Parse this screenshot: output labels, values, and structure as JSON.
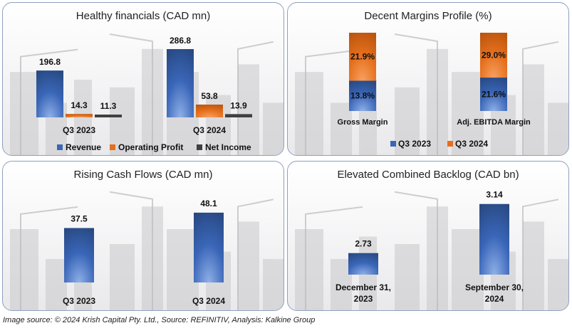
{
  "colors": {
    "blue": "#3a66b8",
    "blue_dark": "#27477f",
    "orange": "#e56f1c",
    "orange_dark": "#b8540e",
    "dark": "#404040"
  },
  "caption": "Image source: © 2024 Krish Capital Pty. Ltd., Source: REFINITIV, Analysis: Kalkine Group",
  "chart_data": [
    {
      "type": "bar",
      "title": "Healthy financials (CAD mn)",
      "categories": [
        "Q3 2023",
        "Q3 2024"
      ],
      "series": [
        {
          "name": "Revenue",
          "values": [
            196.8,
            286.8
          ]
        },
        {
          "name": "Operating Profit",
          "values": [
            14.3,
            53.8
          ]
        },
        {
          "name": "Net Income",
          "values": [
            11.3,
            13.9
          ]
        }
      ],
      "ylim": [
        0,
        300
      ],
      "legend": "bottom",
      "grid": false
    },
    {
      "type": "bar",
      "stacked": true,
      "title": "Decent Margins Profile (%)",
      "categories": [
        "Gross Margin",
        "Adj. EBITDA Margin"
      ],
      "series": [
        {
          "name": "Q3 2023",
          "values": [
            13.8,
            21.6
          ],
          "labels": [
            "13.8%",
            "21.6%"
          ]
        },
        {
          "name": "Q3 2024",
          "values": [
            21.9,
            29.0
          ],
          "labels": [
            "21.9%",
            "29.0%"
          ]
        }
      ],
      "normalized": true,
      "legend": "bottom",
      "grid": false
    },
    {
      "type": "bar",
      "title": "Rising Cash Flows (CAD mn)",
      "categories": [
        "Q3 2023",
        "Q3 2024"
      ],
      "values": [
        37.5,
        48.1
      ],
      "labels": [
        "37.5",
        "48.1"
      ],
      "ylim": [
        0,
        100
      ],
      "grid": false
    },
    {
      "type": "bar",
      "title": "Elevated Combined Backlog (CAD bn)",
      "categories": [
        "December 31, 2023",
        "September 30, 2024"
      ],
      "category_lines": [
        [
          "December 31,",
          "2023"
        ],
        [
          "September 30,",
          "2024"
        ]
      ],
      "values": [
        2.73,
        3.14
      ],
      "labels": [
        "2.73",
        "3.14"
      ],
      "ylim": [
        2.5,
        3.25
      ],
      "grid": false
    }
  ]
}
